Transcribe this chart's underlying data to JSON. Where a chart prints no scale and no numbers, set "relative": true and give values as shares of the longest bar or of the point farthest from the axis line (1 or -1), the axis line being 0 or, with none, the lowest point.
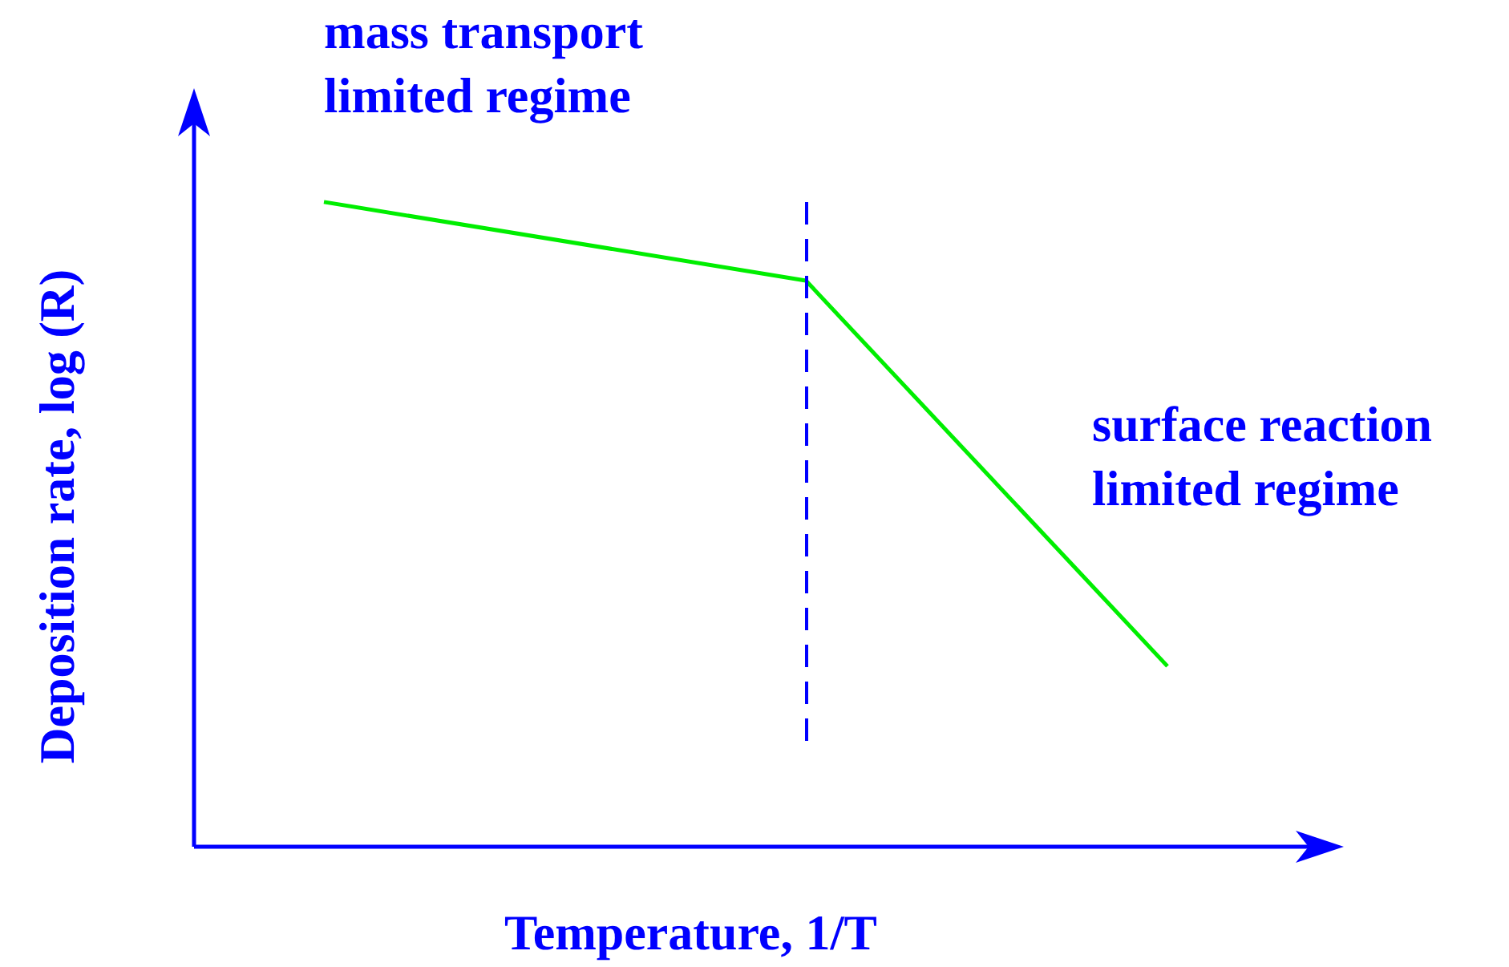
{
  "chart_data": {
    "type": "line",
    "relative": true,
    "xlabel": "Temperature, 1/T",
    "ylabel": "Deposition rate, log (R)",
    "categories": [
      null,
      null,
      null,
      null,
      null,
      null,
      null,
      null
    ],
    "series": [
      {
        "color": "#00ee00",
        "values": [
          1,
          null,
          null,
          null,
          0.878,
          null,
          null,
          0.28
        ]
      }
    ],
    "annotations": [
      "mass transport limited regime",
      "surface reaction limited regime"
    ],
    "marker": "none",
    "grid": false,
    "legend": false
  }
}
